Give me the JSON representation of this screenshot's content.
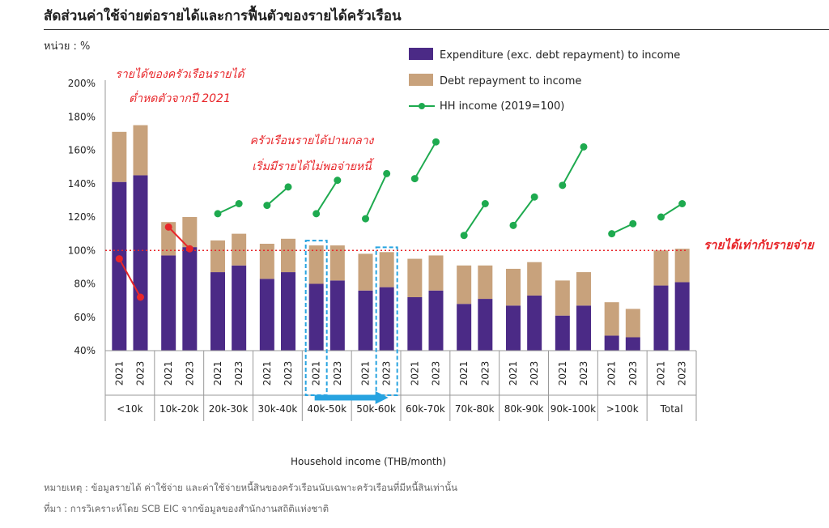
{
  "header": {
    "title": "สัดส่วนค่าใช้จ่ายต่อรายได้และการฟื้นตัวของรายได้ครัวเรือน",
    "unit": "หน่วย : %"
  },
  "footer": {
    "note": "หมายเหตุ : ข้อมูลรายได้ ค่าใช้จ่าย และค่าใช้จ่ายหนี้สินของครัวเรือนนับเฉพาะครัวเรือนที่มีหนี้สินเท่านั้น",
    "source": "ที่มา : การวิเคราะห์โดย SCB EIC จากข้อมูลของสำนักงานสถิติแห่งชาติ"
  },
  "colors": {
    "expenditure": "#4b2a86",
    "debt": "#c8a27c",
    "hh_income": "#1eaa4f",
    "hh_income_low": "#e8262a",
    "reference_line": "#e8262a",
    "highlight": "#27a3e0"
  },
  "chart_data": {
    "type": "bar",
    "stacked": true,
    "xlabel": "Household income (THB/month)",
    "ylabel": "",
    "ylim": [
      40,
      200
    ],
    "yticks": [
      "40%",
      "60%",
      "80%",
      "100%",
      "120%",
      "140%",
      "160%",
      "180%",
      "200%"
    ],
    "groups": [
      "<10k",
      "10k-20k",
      "20k-30k",
      "30k-40k",
      "40k-50k",
      "50k-60k",
      "60k-70k",
      "70k-80k",
      "80k-90k",
      "90k-100k",
      ">100k",
      "Total"
    ],
    "years": [
      "2021",
      "2023"
    ],
    "series": [
      {
        "name": "Expenditure (exc. debt repayment) to income",
        "values": [
          [
            141,
            145
          ],
          [
            97,
            102
          ],
          [
            87,
            91
          ],
          [
            83,
            87
          ],
          [
            80,
            82
          ],
          [
            76,
            78
          ],
          [
            72,
            76
          ],
          [
            68,
            71
          ],
          [
            67,
            73
          ],
          [
            61,
            67
          ],
          [
            49,
            48
          ],
          [
            79,
            81
          ]
        ]
      },
      {
        "name": "Debt repayment to income",
        "values": [
          [
            30,
            30
          ],
          [
            20,
            18
          ],
          [
            19,
            19
          ],
          [
            21,
            20
          ],
          [
            23,
            21
          ],
          [
            22,
            21
          ],
          [
            23,
            21
          ],
          [
            23,
            20
          ],
          [
            22,
            20
          ],
          [
            21,
            20
          ],
          [
            20,
            17
          ],
          [
            21,
            20
          ]
        ]
      },
      {
        "name": "HH income (2019=100)",
        "values": [
          [
            95,
            72
          ],
          [
            114,
            101
          ],
          [
            122,
            128
          ],
          [
            127,
            138
          ],
          [
            122,
            142
          ],
          [
            119,
            146
          ],
          [
            143,
            165
          ],
          [
            109,
            128
          ],
          [
            115,
            132
          ],
          [
            139,
            162
          ],
          [
            110,
            116
          ],
          [
            120,
            128
          ]
        ]
      }
    ],
    "reference_line": {
      "value": 100,
      "label": "รายได้เท่ากับรายจ่าย"
    },
    "annotations": [
      "รายได้ของครัวเรือนรายได้",
      "ต่ำหดตัวจากปี 2021",
      "ครัวเรือนรายได้ปานกลาง",
      "เริ่มมีรายได้ไม่พอจ่ายหนี้"
    ],
    "highlighted_bars": [
      [
        4,
        0
      ],
      [
        5,
        1
      ]
    ],
    "legend": "top-right",
    "grid": false
  }
}
